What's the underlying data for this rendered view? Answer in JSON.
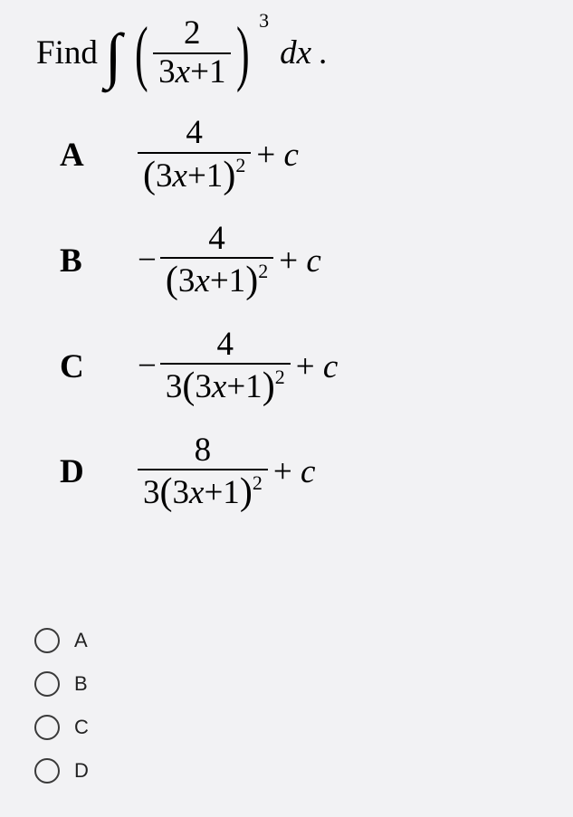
{
  "question": {
    "prefix": "Find",
    "integral_num": "2",
    "integral_den_a": "3",
    "integral_den_x": "x",
    "integral_den_b": "+1",
    "power": "3",
    "dx": "dx",
    "period": "."
  },
  "answers": {
    "A": {
      "label": "A",
      "sign": "",
      "num": "4",
      "coef": "",
      "inner_a": "3",
      "inner_x": "x",
      "inner_b": "+1",
      "pow": "2",
      "plus": "+",
      "c": "c"
    },
    "B": {
      "label": "B",
      "sign": "−",
      "num": "4",
      "coef": "",
      "inner_a": "3",
      "inner_x": "x",
      "inner_b": "+1",
      "pow": "2",
      "plus": "+",
      "c": "c"
    },
    "C": {
      "label": "C",
      "sign": "−",
      "num": "4",
      "coef": "3",
      "inner_a": "3",
      "inner_x": "x",
      "inner_b": "+1",
      "pow": "2",
      "plus": "+",
      "c": "c"
    },
    "D": {
      "label": "D",
      "sign": "",
      "num": "8",
      "coef": "3",
      "inner_a": "3",
      "inner_x": "x",
      "inner_b": "+1",
      "pow": "2",
      "plus": "+",
      "c": "c"
    }
  },
  "radios": {
    "A": "A",
    "B": "B",
    "C": "C",
    "D": "D"
  },
  "colors": {
    "background": "#f2f2f4",
    "text": "#000000",
    "radio_border": "#3a3a3a"
  },
  "typography": {
    "serif_family": "Times New Roman",
    "sans_family": "Arial",
    "base_size_pt": 28,
    "label_weight": "bold"
  }
}
